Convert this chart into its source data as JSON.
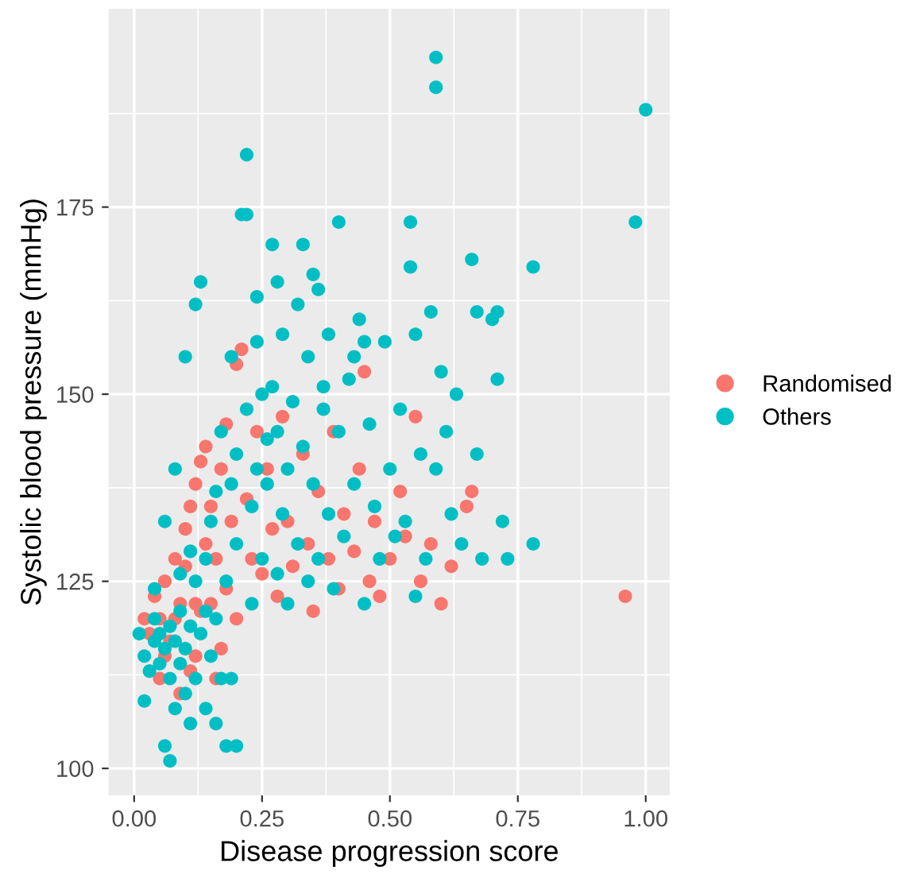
{
  "chart_data": {
    "type": "scatter",
    "xlabel": "Disease progression score",
    "ylabel": "Systolic blood pressure (mmHg)",
    "xlim": [
      -0.05,
      1.047
    ],
    "ylim": [
      96.4,
      201.5
    ],
    "xticks": [
      {
        "value": 0,
        "label": "0.00"
      },
      {
        "value": 0.25,
        "label": "0.25"
      },
      {
        "value": 0.5,
        "label": "0.50"
      },
      {
        "value": 0.75,
        "label": "0.75"
      },
      {
        "value": 1,
        "label": "1.00"
      }
    ],
    "yticks": [
      100,
      125,
      150,
      175
    ],
    "grid": true,
    "legend": "right",
    "marker": "circle",
    "series": [
      {
        "name": "Randomised",
        "color": "#f8766d",
        "x": [
          0.02,
          0.03,
          0.04,
          0.05,
          0.06,
          0.06,
          0.07,
          0.08,
          0.08,
          0.09,
          0.1,
          0.1,
          0.11,
          0.12,
          0.12,
          0.13,
          0.13,
          0.14,
          0.14,
          0.15,
          0.15,
          0.16,
          0.16,
          0.17,
          0.18,
          0.18,
          0.19,
          0.2,
          0.2,
          0.21,
          0.22,
          0.23,
          0.24,
          0.25,
          0.26,
          0.27,
          0.28,
          0.29,
          0.3,
          0.31,
          0.33,
          0.34,
          0.35,
          0.36,
          0.38,
          0.39,
          0.4,
          0.41,
          0.43,
          0.44,
          0.45,
          0.46,
          0.47,
          0.48,
          0.5,
          0.52,
          0.53,
          0.55,
          0.56,
          0.58,
          0.6,
          0.62,
          0.65,
          0.66,
          0.96,
          0.05,
          0.09,
          0.12,
          0.17,
          0.11
        ],
        "values": [
          120,
          118,
          123,
          120,
          125,
          115,
          117,
          120,
          128,
          122,
          132,
          127,
          135,
          138,
          122,
          141,
          121,
          130,
          143,
          122,
          135,
          128,
          112,
          140,
          124,
          146,
          133,
          120,
          154,
          156,
          136,
          128,
          145,
          126,
          140,
          132,
          123,
          147,
          133,
          127,
          142,
          130,
          121,
          137,
          128,
          145,
          124,
          134,
          129,
          140,
          153,
          125,
          133,
          123,
          128,
          137,
          131,
          147,
          125,
          130,
          122,
          127,
          135,
          137,
          123,
          112,
          110,
          115,
          116,
          113
        ]
      },
      {
        "name": "Others",
        "color": "#00bfc4",
        "x": [
          0.01,
          0.02,
          0.02,
          0.03,
          0.04,
          0.04,
          0.05,
          0.05,
          0.06,
          0.06,
          0.07,
          0.07,
          0.07,
          0.08,
          0.08,
          0.09,
          0.09,
          0.1,
          0.1,
          0.11,
          0.11,
          0.12,
          0.12,
          0.13,
          0.14,
          0.14,
          0.15,
          0.15,
          0.16,
          0.16,
          0.17,
          0.17,
          0.18,
          0.18,
          0.19,
          0.19,
          0.2,
          0.2,
          0.21,
          0.22,
          0.22,
          0.22,
          0.23,
          0.23,
          0.24,
          0.24,
          0.25,
          0.25,
          0.26,
          0.26,
          0.27,
          0.27,
          0.28,
          0.28,
          0.29,
          0.29,
          0.3,
          0.3,
          0.31,
          0.32,
          0.32,
          0.33,
          0.34,
          0.34,
          0.35,
          0.35,
          0.36,
          0.37,
          0.38,
          0.38,
          0.39,
          0.4,
          0.4,
          0.41,
          0.42,
          0.43,
          0.44,
          0.45,
          0.46,
          0.47,
          0.48,
          0.49,
          0.5,
          0.51,
          0.52,
          0.53,
          0.54,
          0.54,
          0.55,
          0.55,
          0.56,
          0.57,
          0.58,
          0.59,
          0.59,
          0.59,
          0.6,
          0.61,
          0.62,
          0.63,
          0.64,
          0.66,
          0.67,
          0.67,
          0.68,
          0.7,
          0.71,
          0.71,
          0.72,
          0.73,
          0.78,
          0.78,
          0.98,
          1.0,
          0.08,
          0.1,
          0.12,
          0.13,
          0.06,
          0.09,
          0.11,
          0.14,
          0.16,
          0.19,
          0.2,
          0.04,
          0.24,
          0.28,
          0.33,
          0.36,
          0.37,
          0.43,
          0.45
        ],
        "values": [
          118,
          115,
          109,
          113,
          117,
          120,
          114,
          118,
          103,
          116,
          101,
          112,
          119,
          117,
          108,
          114,
          121,
          116,
          110,
          119,
          106,
          112,
          125,
          118,
          108,
          128,
          115,
          133,
          120,
          137,
          112,
          145,
          103,
          125,
          138,
          155,
          142,
          130,
          174,
          174,
          182,
          148,
          135,
          122,
          140,
          163,
          150,
          128,
          144,
          138,
          170,
          151,
          126,
          145,
          134,
          158,
          140,
          122,
          149,
          130,
          162,
          143,
          125,
          155,
          138,
          166,
          128,
          148,
          158,
          134,
          124,
          173,
          145,
          131,
          152,
          138,
          160,
          122,
          146,
          135,
          128,
          157,
          140,
          131,
          148,
          133,
          173,
          167,
          123,
          158,
          142,
          128,
          161,
          195,
          191,
          140,
          153,
          145,
          134,
          150,
          130,
          168,
          161,
          142,
          128,
          160,
          161,
          152,
          133,
          128,
          167,
          130,
          173,
          188,
          140,
          155,
          162,
          165,
          133,
          126,
          129,
          121,
          106,
          112,
          103,
          124,
          157,
          165,
          170,
          164,
          151,
          155,
          157
        ]
      }
    ]
  }
}
